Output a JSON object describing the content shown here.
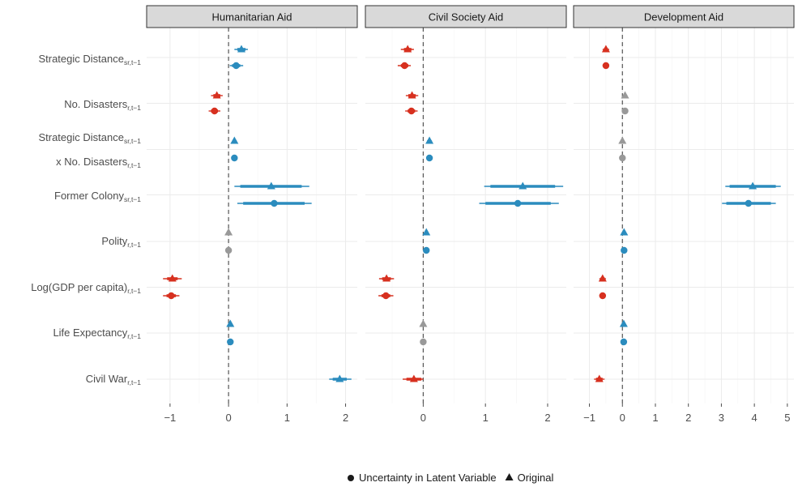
{
  "chart_data": {
    "type": "scatter",
    "subtype": "coefficient-plot",
    "legend": {
      "position": "bottom",
      "entries": [
        {
          "label": "Uncertainty in Latent Variable",
          "shape": "circle"
        },
        {
          "label": "Original",
          "shape": "triangle"
        }
      ]
    },
    "colors": {
      "negative": "#d7301f",
      "positive": "#2b8cbe",
      "insignificant": "#999999"
    },
    "grid": true,
    "rows": [
      {
        "key": "strategic_distance",
        "lines": [
          {
            "main": "Strategic Distance",
            "sub": "sr,t−1"
          }
        ]
      },
      {
        "key": "no_disasters",
        "lines": [
          {
            "main": "No. Disasters",
            "sub": "r,t−1"
          }
        ]
      },
      {
        "key": "interaction",
        "lines": [
          {
            "main": "Strategic Distance",
            "sub": "sr,t−1"
          },
          {
            "main": "x No. Disasters",
            "sub": "r,t−1"
          }
        ]
      },
      {
        "key": "former_colony",
        "lines": [
          {
            "main": "Former Colony",
            "sub": "sr,t−1"
          }
        ]
      },
      {
        "key": "polity",
        "lines": [
          {
            "main": "Polity",
            "sub": "r,t−1"
          }
        ]
      },
      {
        "key": "log_gdp",
        "lines": [
          {
            "main": "Log(GDP per capita)",
            "sub": "r,t−1"
          }
        ]
      },
      {
        "key": "life_expectancy",
        "lines": [
          {
            "main": "Life Expectancy",
            "sub": "r,t−1"
          }
        ]
      },
      {
        "key": "civil_war",
        "lines": [
          {
            "main": "Civil War",
            "sub": "r,t−1"
          }
        ]
      }
    ],
    "panels": [
      {
        "title": "Humanitarian Aid",
        "xlim": [
          -1.4,
          2.2
        ],
        "xticks": [
          -1,
          0,
          1,
          2
        ],
        "xtick_labels": [
          "−1",
          "0",
          "1",
          "2"
        ],
        "points": [
          {
            "row": "strategic_distance",
            "model": "Original",
            "estimate": 0.22,
            "ci90": [
              0.15,
              0.29
            ],
            "ci95": [
              0.1,
              0.33
            ],
            "color": "positive"
          },
          {
            "row": "strategic_distance",
            "model": "Uncertainty in Latent Variable",
            "estimate": 0.13,
            "ci90": [
              0.06,
              0.2
            ],
            "ci95": [
              0.02,
              0.25
            ],
            "color": "positive"
          },
          {
            "row": "no_disasters",
            "model": "Original",
            "estimate": -0.2,
            "ci90": [
              -0.26,
              -0.14
            ],
            "ci95": [
              -0.3,
              -0.1
            ],
            "color": "negative"
          },
          {
            "row": "no_disasters",
            "model": "Uncertainty in Latent Variable",
            "estimate": -0.24,
            "ci90": [
              -0.3,
              -0.18
            ],
            "ci95": [
              -0.34,
              -0.14
            ],
            "color": "negative"
          },
          {
            "row": "interaction",
            "model": "Original",
            "estimate": 0.1,
            "ci90": [
              0.08,
              0.12
            ],
            "ci95": [
              0.06,
              0.14
            ],
            "color": "positive"
          },
          {
            "row": "interaction",
            "model": "Uncertainty in Latent Variable",
            "estimate": 0.1,
            "ci90": [
              0.08,
              0.12
            ],
            "ci95": [
              0.06,
              0.14
            ],
            "color": "positive"
          },
          {
            "row": "former_colony",
            "model": "Original",
            "estimate": 0.73,
            "ci90": [
              0.2,
              1.25
            ],
            "ci95": [
              0.1,
              1.38
            ],
            "color": "positive"
          },
          {
            "row": "former_colony",
            "model": "Uncertainty in Latent Variable",
            "estimate": 0.78,
            "ci90": [
              0.25,
              1.3
            ],
            "ci95": [
              0.15,
              1.42
            ],
            "color": "positive"
          },
          {
            "row": "polity",
            "model": "Original",
            "estimate": 0.0,
            "ci90": [
              -0.02,
              0.02
            ],
            "ci95": [
              -0.03,
              0.03
            ],
            "color": "insignificant"
          },
          {
            "row": "polity",
            "model": "Uncertainty in Latent Variable",
            "estimate": 0.0,
            "ci90": [
              -0.02,
              0.02
            ],
            "ci95": [
              -0.03,
              0.03
            ],
            "color": "insignificant"
          },
          {
            "row": "log_gdp",
            "model": "Original",
            "estimate": -0.96,
            "ci90": [
              -1.05,
              -0.87
            ],
            "ci95": [
              -1.12,
              -0.8
            ],
            "color": "negative"
          },
          {
            "row": "log_gdp",
            "model": "Uncertainty in Latent Variable",
            "estimate": -0.98,
            "ci90": [
              -1.06,
              -0.9
            ],
            "ci95": [
              -1.12,
              -0.84
            ],
            "color": "negative"
          },
          {
            "row": "life_expectancy",
            "model": "Original",
            "estimate": 0.03,
            "ci90": [
              0.01,
              0.05
            ],
            "ci95": [
              0.0,
              0.06
            ],
            "color": "positive"
          },
          {
            "row": "life_expectancy",
            "model": "Uncertainty in Latent Variable",
            "estimate": 0.03,
            "ci90": [
              0.01,
              0.05
            ],
            "ci95": [
              0.0,
              0.06
            ],
            "color": "positive"
          },
          {
            "row": "civil_war",
            "model": "Original",
            "estimate": 1.9,
            "ci90": [
              1.78,
              2.02
            ],
            "ci95": [
              1.72,
              2.1
            ],
            "color": "positive"
          }
        ]
      },
      {
        "title": "Civil Society Aid",
        "xlim": [
          -0.93,
          2.3
        ],
        "xticks": [
          0,
          1,
          2
        ],
        "xtick_labels": [
          "0",
          "1",
          "2"
        ],
        "points": [
          {
            "row": "strategic_distance",
            "model": "Original",
            "estimate": -0.25,
            "ci90": [
              -0.31,
              -0.19
            ],
            "ci95": [
              -0.36,
              -0.15
            ],
            "color": "negative"
          },
          {
            "row": "strategic_distance",
            "model": "Uncertainty in Latent Variable",
            "estimate": -0.3,
            "ci90": [
              -0.36,
              -0.24
            ],
            "ci95": [
              -0.41,
              -0.2
            ],
            "color": "negative"
          },
          {
            "row": "no_disasters",
            "model": "Original",
            "estimate": -0.18,
            "ci90": [
              -0.24,
              -0.12
            ],
            "ci95": [
              -0.28,
              -0.08
            ],
            "color": "negative"
          },
          {
            "row": "no_disasters",
            "model": "Uncertainty in Latent Variable",
            "estimate": -0.19,
            "ci90": [
              -0.25,
              -0.13
            ],
            "ci95": [
              -0.29,
              -0.09
            ],
            "color": "negative"
          },
          {
            "row": "interaction",
            "model": "Original",
            "estimate": 0.1,
            "ci90": [
              0.08,
              0.12
            ],
            "ci95": [
              0.06,
              0.14
            ],
            "color": "positive"
          },
          {
            "row": "interaction",
            "model": "Uncertainty in Latent Variable",
            "estimate": 0.1,
            "ci90": [
              0.08,
              0.12
            ],
            "ci95": [
              0.06,
              0.14
            ],
            "color": "positive"
          },
          {
            "row": "former_colony",
            "model": "Original",
            "estimate": 1.6,
            "ci90": [
              1.08,
              2.12
            ],
            "ci95": [
              0.98,
              2.25
            ],
            "color": "positive"
          },
          {
            "row": "former_colony",
            "model": "Uncertainty in Latent Variable",
            "estimate": 1.52,
            "ci90": [
              1.0,
              2.05
            ],
            "ci95": [
              0.9,
              2.18
            ],
            "color": "positive"
          },
          {
            "row": "polity",
            "model": "Original",
            "estimate": 0.05,
            "ci90": [
              0.03,
              0.07
            ],
            "ci95": [
              0.02,
              0.08
            ],
            "color": "positive"
          },
          {
            "row": "polity",
            "model": "Uncertainty in Latent Variable",
            "estimate": 0.05,
            "ci90": [
              0.03,
              0.07
            ],
            "ci95": [
              0.02,
              0.08
            ],
            "color": "positive"
          },
          {
            "row": "log_gdp",
            "model": "Original",
            "estimate": -0.59,
            "ci90": [
              -0.66,
              -0.52
            ],
            "ci95": [
              -0.71,
              -0.47
            ],
            "color": "negative"
          },
          {
            "row": "log_gdp",
            "model": "Uncertainty in Latent Variable",
            "estimate": -0.6,
            "ci90": [
              -0.67,
              -0.53
            ],
            "ci95": [
              -0.72,
              -0.48
            ],
            "color": "negative"
          },
          {
            "row": "life_expectancy",
            "model": "Original",
            "estimate": 0.0,
            "ci90": [
              -0.02,
              0.02
            ],
            "ci95": [
              -0.03,
              0.03
            ],
            "color": "insignificant"
          },
          {
            "row": "life_expectancy",
            "model": "Uncertainty in Latent Variable",
            "estimate": 0.0,
            "ci90": [
              -0.02,
              0.02
            ],
            "ci95": [
              -0.03,
              0.03
            ],
            "color": "insignificant"
          },
          {
            "row": "civil_war",
            "model": "Original",
            "estimate": -0.15,
            "ci90": [
              -0.27,
              -0.03
            ],
            "ci95": [
              -0.33,
              0.0
            ],
            "color": "negative"
          }
        ]
      },
      {
        "title": "Development Aid",
        "xlim": [
          -1.48,
          5.2
        ],
        "xticks": [
          -1,
          0,
          1,
          2,
          3,
          4,
          5
        ],
        "xtick_labels": [
          "−1",
          "0",
          "1",
          "2",
          "3",
          "4",
          "5"
        ],
        "points": [
          {
            "row": "strategic_distance",
            "model": "Original",
            "estimate": -0.5,
            "ci90": [
              -0.56,
              -0.44
            ],
            "ci95": [
              -0.6,
              -0.4
            ],
            "color": "negative"
          },
          {
            "row": "strategic_distance",
            "model": "Uncertainty in Latent Variable",
            "estimate": -0.5,
            "ci90": [
              -0.56,
              -0.44
            ],
            "ci95": [
              -0.6,
              -0.4
            ],
            "color": "negative"
          },
          {
            "row": "no_disasters",
            "model": "Original",
            "estimate": 0.08,
            "ci90": [
              0.04,
              0.12
            ],
            "ci95": [
              0.01,
              0.15
            ],
            "color": "insignificant"
          },
          {
            "row": "no_disasters",
            "model": "Uncertainty in Latent Variable",
            "estimate": 0.08,
            "ci90": [
              0.04,
              0.12
            ],
            "ci95": [
              0.01,
              0.15
            ],
            "color": "insignificant"
          },
          {
            "row": "interaction",
            "model": "Original",
            "estimate": 0.0,
            "ci90": [
              -0.02,
              0.02
            ],
            "ci95": [
              -0.03,
              0.03
            ],
            "color": "insignificant"
          },
          {
            "row": "interaction",
            "model": "Uncertainty in Latent Variable",
            "estimate": 0.0,
            "ci90": [
              -0.02,
              0.02
            ],
            "ci95": [
              -0.03,
              0.03
            ],
            "color": "insignificant"
          },
          {
            "row": "former_colony",
            "model": "Original",
            "estimate": 3.95,
            "ci90": [
              3.25,
              4.65
            ],
            "ci95": [
              3.12,
              4.8
            ],
            "color": "positive"
          },
          {
            "row": "former_colony",
            "model": "Uncertainty in Latent Variable",
            "estimate": 3.82,
            "ci90": [
              3.15,
              4.5
            ],
            "ci95": [
              3.02,
              4.65
            ],
            "color": "positive"
          },
          {
            "row": "polity",
            "model": "Original",
            "estimate": 0.05,
            "ci90": [
              0.03,
              0.07
            ],
            "ci95": [
              0.02,
              0.08
            ],
            "color": "positive"
          },
          {
            "row": "polity",
            "model": "Uncertainty in Latent Variable",
            "estimate": 0.05,
            "ci90": [
              0.03,
              0.07
            ],
            "ci95": [
              0.02,
              0.08
            ],
            "color": "positive"
          },
          {
            "row": "log_gdp",
            "model": "Original",
            "estimate": -0.6,
            "ci90": [
              -0.66,
              -0.54
            ],
            "ci95": [
              -0.7,
              -0.5
            ],
            "color": "negative"
          },
          {
            "row": "log_gdp",
            "model": "Uncertainty in Latent Variable",
            "estimate": -0.6,
            "ci90": [
              -0.66,
              -0.54
            ],
            "ci95": [
              -0.7,
              -0.5
            ],
            "color": "negative"
          },
          {
            "row": "life_expectancy",
            "model": "Original",
            "estimate": 0.04,
            "ci90": [
              0.02,
              0.06
            ],
            "ci95": [
              0.01,
              0.07
            ],
            "color": "positive"
          },
          {
            "row": "life_expectancy",
            "model": "Uncertainty in Latent Variable",
            "estimate": 0.04,
            "ci90": [
              0.02,
              0.06
            ],
            "ci95": [
              0.01,
              0.07
            ],
            "color": "positive"
          },
          {
            "row": "civil_war",
            "model": "Original",
            "estimate": -0.7,
            "ci90": [
              -0.8,
              -0.6
            ],
            "ci95": [
              -0.86,
              -0.54
            ],
            "color": "negative"
          }
        ]
      }
    ]
  }
}
